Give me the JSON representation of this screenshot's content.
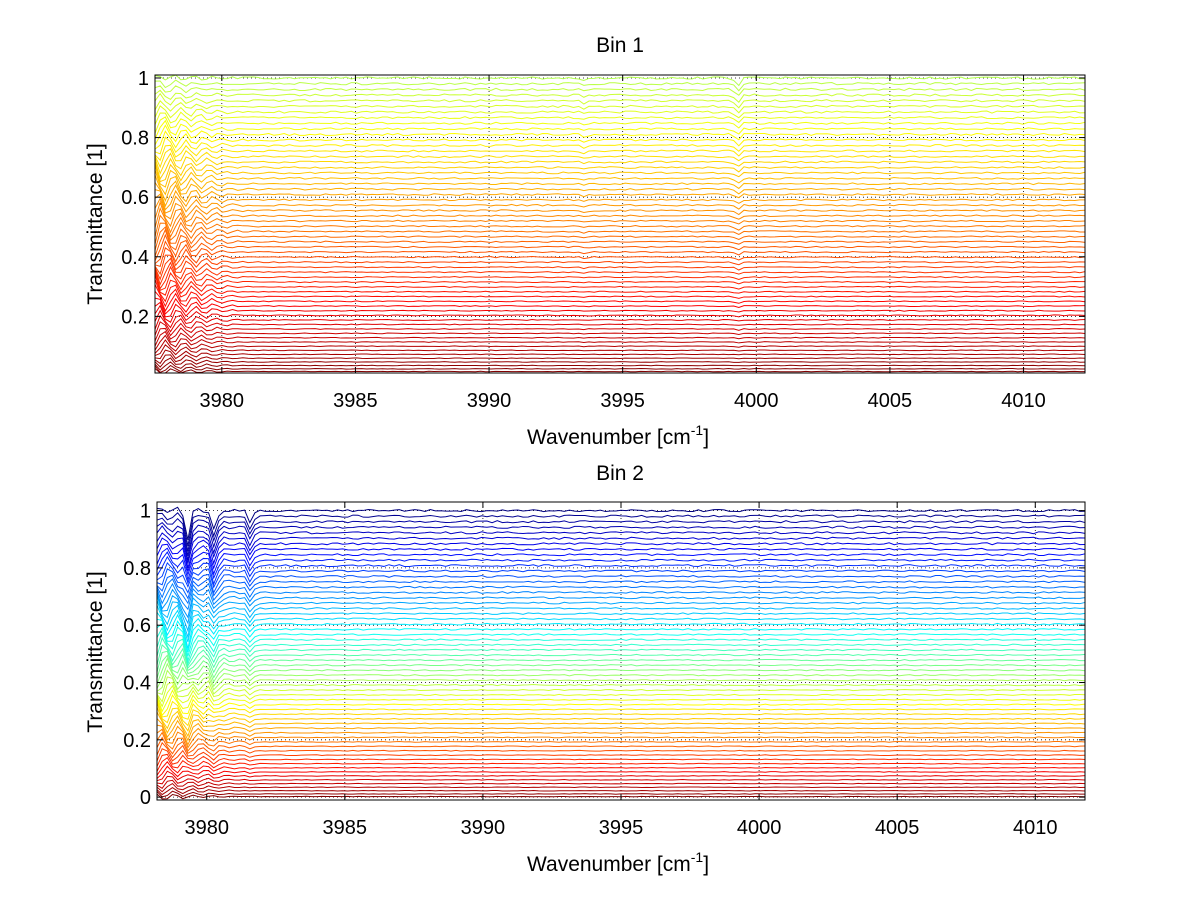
{
  "chart_data": [
    {
      "type": "line",
      "title": "Bin 1",
      "xlabel": "Wavenumber [cm",
      "xlabel_sup": "-1",
      "xlabel_end": "]",
      "ylabel": "Transmittance [1]",
      "xlim": [
        3977.5,
        4012.3
      ],
      "ylim": [
        0.01,
        1.01
      ],
      "xticks": [
        3980,
        3985,
        3990,
        3995,
        4000,
        4005,
        4010
      ],
      "xtick_labels": [
        "3980",
        "3985",
        "3990",
        "3995",
        "4000",
        "4005",
        "4010"
      ],
      "yticks": [
        0.2,
        0.4,
        0.6,
        0.8,
        1
      ],
      "ytick_labels": [
        "0.2",
        "0.4",
        "0.6",
        "0.8",
        "1"
      ],
      "grid": true,
      "colormap": "jet",
      "series_count": 60,
      "levels_min": 0.015,
      "levels_max": 1.0,
      "colormap_range": [
        0.55,
        1.0
      ],
      "features": [
        {
          "x": 3999.3,
          "depth": 0.025
        },
        {
          "x": 3993.6,
          "depth": 0.01
        }
      ],
      "low_edge_oscillation": true
    },
    {
      "type": "line",
      "title": "Bin 2",
      "xlabel": "Wavenumber [cm",
      "xlabel_sup": "-1",
      "xlabel_end": "]",
      "ylabel": "Transmittance [1]",
      "xlim": [
        3978.2,
        4011.8
      ],
      "ylim": [
        -0.01,
        1.03
      ],
      "xticks": [
        3980,
        3985,
        3990,
        3995,
        4000,
        4005,
        4010
      ],
      "xtick_labels": [
        "3980",
        "3985",
        "3990",
        "3995",
        "4000",
        "4005",
        "4010"
      ],
      "yticks": [
        0,
        0.2,
        0.4,
        0.6,
        0.8,
        1
      ],
      "ytick_labels": [
        "0",
        "0.2",
        "0.4",
        "0.6",
        "0.8",
        "1"
      ],
      "grid": true,
      "colormap": "jet",
      "series_count": 60,
      "levels_min": 0.002,
      "levels_max": 1.0,
      "colormap_range": [
        0.0,
        1.0
      ],
      "features": [
        {
          "x": 3979.3,
          "depth": 0.1
        },
        {
          "x": 3980.3,
          "depth": 0.08
        },
        {
          "x": 3981.6,
          "depth": 0.05
        }
      ],
      "low_edge_oscillation": true
    }
  ]
}
